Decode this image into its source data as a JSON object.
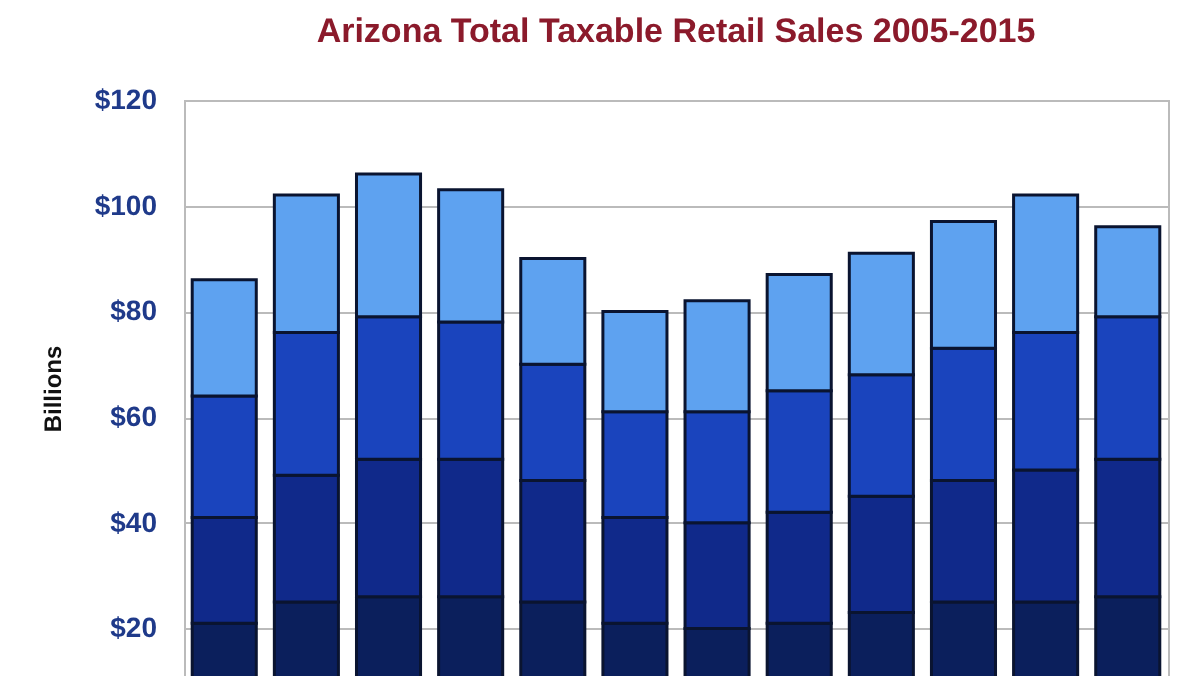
{
  "chart_data": {
    "type": "bar",
    "title": "Arizona Total Taxable Retail Sales 2005-2015",
    "ylabel": "Billions",
    "categories": [
      null,
      null,
      null,
      null,
      null,
      null,
      null,
      null,
      null,
      null,
      null,
      null
    ],
    "stacked": true,
    "series": [
      {
        "color": "#0b1f5c",
        "values": [
          21,
          25,
          26,
          26,
          25,
          21,
          20,
          21,
          23,
          25,
          25,
          26
        ]
      },
      {
        "color": "#10298a",
        "values": [
          20,
          24,
          26,
          26,
          23,
          20,
          20,
          21,
          22,
          23,
          25,
          26
        ]
      },
      {
        "color": "#1a44bd",
        "values": [
          23,
          27,
          27,
          26,
          22,
          20,
          21,
          23,
          23,
          25,
          26,
          27
        ]
      },
      {
        "color": "#5ea2f0",
        "values": [
          22,
          26,
          27,
          25,
          20,
          19,
          21,
          22,
          23,
          24,
          26,
          17
        ]
      }
    ],
    "ylim": [
      11,
      120
    ],
    "yticks": [
      {
        "value": 20,
        "label": "$20"
      },
      {
        "value": 40,
        "label": "$40"
      },
      {
        "value": 60,
        "label": "$60"
      },
      {
        "value": 80,
        "label": "$80"
      },
      {
        "value": 100,
        "label": "$100"
      },
      {
        "value": 120,
        "label": "$120"
      }
    ],
    "grid": "y",
    "legend": false,
    "tick_labels": "y"
  }
}
